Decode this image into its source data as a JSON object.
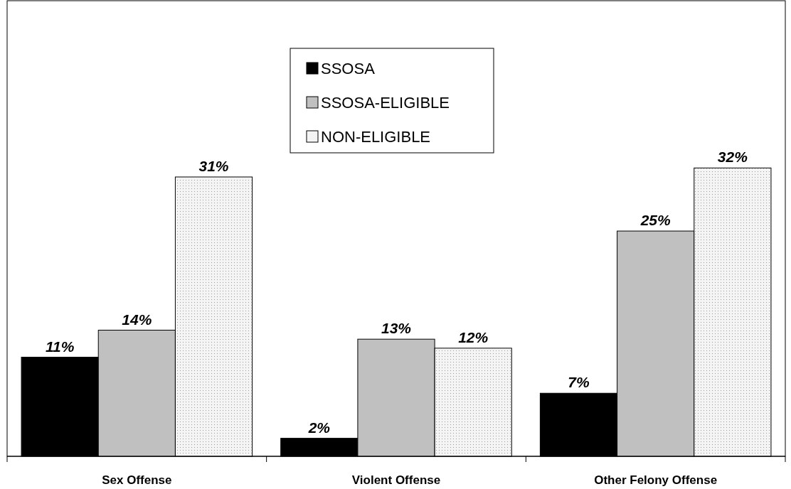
{
  "chart_data": {
    "type": "bar",
    "categories": [
      "Sex Offense",
      "Violent Offense",
      "Other Felony Offense"
    ],
    "series": [
      {
        "name": "SSOSA",
        "color": "#000000",
        "values": [
          11,
          2,
          7
        ],
        "value_labels": [
          "11%",
          "2%",
          "7%"
        ]
      },
      {
        "name": "SSOSA-ELIGIBLE",
        "color": "#c0c0c0",
        "values": [
          14,
          13,
          25
        ],
        "value_labels": [
          "14%",
          "13%",
          "25%"
        ]
      },
      {
        "name": "NON-ELIGIBLE",
        "color": "#f4f4f4",
        "values": [
          31,
          12,
          32
        ],
        "value_labels": [
          "31%",
          "12%",
          "32%"
        ]
      }
    ],
    "legend": "top"
  }
}
